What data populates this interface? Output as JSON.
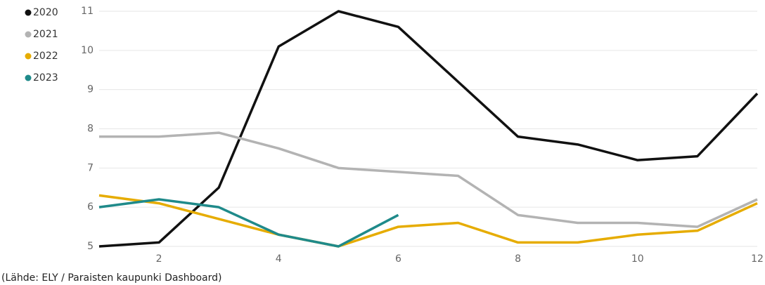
{
  "chart_data": {
    "type": "line",
    "source": "(Lähde: ELY / Paraisten kaupunki Dashboard)",
    "x": [
      1,
      2,
      3,
      4,
      5,
      6,
      7,
      8,
      9,
      10,
      11,
      12
    ],
    "xlim": [
      1,
      12
    ],
    "xticks": [
      2,
      4,
      6,
      8,
      10,
      12
    ],
    "ylim": [
      5,
      11
    ],
    "yticks": [
      5,
      6,
      7,
      8,
      9,
      10,
      11
    ],
    "grid": true,
    "legend": "top-left",
    "series": [
      {
        "name": "2020",
        "color": "#111111",
        "values": [
          5.0,
          5.1,
          6.5,
          10.1,
          11.0,
          10.6,
          9.2,
          7.8,
          7.6,
          7.2,
          7.3,
          8.9
        ]
      },
      {
        "name": "2021",
        "color": "#b3b3b3",
        "values": [
          7.8,
          7.8,
          7.9,
          7.5,
          7.0,
          6.9,
          6.8,
          5.8,
          5.6,
          5.6,
          5.5,
          6.2
        ]
      },
      {
        "name": "2022",
        "color": "#e6ac00",
        "values": [
          6.3,
          6.1,
          5.7,
          5.3,
          5.0,
          5.5,
          5.6,
          5.1,
          5.1,
          5.3,
          5.4,
          6.1
        ]
      },
      {
        "name": "2023",
        "color": "#1f8a8a",
        "values": [
          6.0,
          6.2,
          6.0,
          5.3,
          5.0,
          5.8,
          null,
          null,
          null,
          null,
          null,
          null
        ]
      }
    ]
  }
}
